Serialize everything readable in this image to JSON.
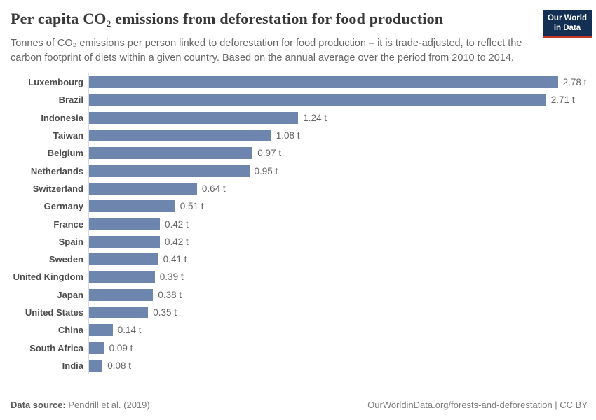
{
  "header": {
    "title": "Per capita CO₂ emissions from deforestation for food production",
    "subtitle": "Tonnes of CO₂ emissions per person linked to deforestation for food production – it is trade-adjusted, to reflect the carbon footprint of diets within a given country. Based on the annual average over the period from 2010 to 2014.",
    "logo_line1": "Our World",
    "logo_line2": "in Data",
    "logo_bg_color": "#132f53",
    "logo_accent_color": "#c5392d"
  },
  "chart_data": {
    "type": "bar",
    "orientation": "horizontal",
    "title": "Per capita CO₂ emissions from deforestation for food production",
    "xlabel": "",
    "ylabel": "",
    "unit": "t",
    "xlim": [
      0,
      3.0
    ],
    "grid": false,
    "legend": "none",
    "bar_color": "#6e85ae",
    "axis_line_color": "#d9d9d9",
    "categories": [
      "Luxembourg",
      "Brazil",
      "Indonesia",
      "Taiwan",
      "Belgium",
      "Netherlands",
      "Switzerland",
      "Germany",
      "France",
      "Spain",
      "Sweden",
      "United Kingdom",
      "Japan",
      "United States",
      "China",
      "South Africa",
      "India"
    ],
    "values": [
      2.78,
      2.71,
      1.24,
      1.08,
      0.97,
      0.95,
      0.64,
      0.51,
      0.42,
      0.42,
      0.41,
      0.39,
      0.38,
      0.35,
      0.14,
      0.09,
      0.08
    ],
    "value_labels": [
      "2.78 t",
      "2.71 t",
      "1.24 t",
      "1.08 t",
      "0.97 t",
      "0.95 t",
      "0.64 t",
      "0.51 t",
      "0.42 t",
      "0.42 t",
      "0.41 t",
      "0.39 t",
      "0.38 t",
      "0.35 t",
      "0.14 t",
      "0.09 t",
      "0.08 t"
    ]
  },
  "footer": {
    "datasource_label": "Data source:",
    "datasource_value": "Pendrill et al. (2019)",
    "credit": "OurWorldinData.org/forests-and-deforestation | CC BY"
  }
}
